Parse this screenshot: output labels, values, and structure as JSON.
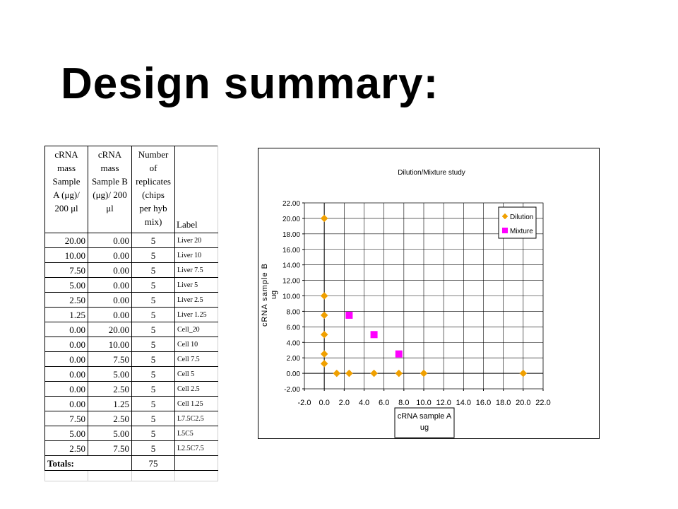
{
  "title": "Design summary:",
  "table": {
    "headers": [
      "cRNA mass Sample A (μg)/ 200 μl",
      "cRNA mass Sample B (μg)/ 200 μl",
      "Number of replicates (chips per hyb mix)",
      "Label"
    ],
    "header_lines": [
      [
        "cRNA",
        "mass",
        "Sample",
        "A (μg)/",
        "200 μl"
      ],
      [
        "cRNA",
        "mass",
        "Sample B",
        "(μg)/ 200",
        "μl"
      ],
      [
        "Number",
        "of",
        "replicates",
        "(chips",
        "per hyb",
        "mix)"
      ]
    ],
    "rows": [
      {
        "a": "20.00",
        "b": "0.00",
        "n": "5",
        "label": "Liver 20"
      },
      {
        "a": "10.00",
        "b": "0.00",
        "n": "5",
        "label": "Liver 10"
      },
      {
        "a": "7.50",
        "b": "0.00",
        "n": "5",
        "label": "Liver 7.5"
      },
      {
        "a": "5.00",
        "b": "0.00",
        "n": "5",
        "label": "Liver 5"
      },
      {
        "a": "2.50",
        "b": "0.00",
        "n": "5",
        "label": "Liver 2.5"
      },
      {
        "a": "1.25",
        "b": "0.00",
        "n": "5",
        "label": "Liver 1.25"
      },
      {
        "a": "0.00",
        "b": "20.00",
        "n": "5",
        "label": "Cell_20"
      },
      {
        "a": "0.00",
        "b": "10.00",
        "n": "5",
        "label": "Cell 10"
      },
      {
        "a": "0.00",
        "b": "7.50",
        "n": "5",
        "label": "Cell 7.5"
      },
      {
        "a": "0.00",
        "b": "5.00",
        "n": "5",
        "label": "Cell 5"
      },
      {
        "a": "0.00",
        "b": "2.50",
        "n": "5",
        "label": "Cell 2.5"
      },
      {
        "a": "0.00",
        "b": "1.25",
        "n": "5",
        "label": "Cell 1.25"
      },
      {
        "a": "7.50",
        "b": "2.50",
        "n": "5",
        "label": "L7.5C2.5"
      },
      {
        "a": "5.00",
        "b": "5.00",
        "n": "5",
        "label": "L5C5"
      },
      {
        "a": "2.50",
        "b": "7.50",
        "n": "5",
        "label": "L2.5C7.5"
      }
    ],
    "totals_label": "Totals:",
    "totals_value": "75"
  },
  "chart_data": {
    "type": "scatter",
    "title": "Dilution/Mixture study",
    "xlabel_lines": [
      "cRNA sample A",
      "ug"
    ],
    "ylabel_lines": [
      "cRNA sample B",
      "ug"
    ],
    "xlim": [
      -2.0,
      22.0
    ],
    "ylim": [
      -2.0,
      22.0
    ],
    "xticks": [
      "-2.0",
      "0.0",
      "2.0",
      "4.0",
      "6.0",
      "8.0",
      "10.0",
      "12.0",
      "14.0",
      "16.0",
      "18.0",
      "20.0",
      "22.0"
    ],
    "yticks": [
      "-2.00",
      "0.00",
      "2.00",
      "4.00",
      "6.00",
      "8.00",
      "10.00",
      "12.00",
      "14.00",
      "16.00",
      "18.00",
      "20.00",
      "22.00"
    ],
    "grid": true,
    "legend_position": "top-right",
    "series": [
      {
        "name": "Dilution",
        "marker": "diamond",
        "color": "#F0A000",
        "points": [
          [
            0,
            20
          ],
          [
            0,
            10
          ],
          [
            0,
            7.5
          ],
          [
            0,
            5
          ],
          [
            0,
            2.5
          ],
          [
            0,
            1.25
          ],
          [
            1.25,
            0
          ],
          [
            2.5,
            0
          ],
          [
            5,
            0
          ],
          [
            7.5,
            0
          ],
          [
            10,
            0
          ],
          [
            20,
            0
          ]
        ]
      },
      {
        "name": "Mixture",
        "marker": "square",
        "color": "#FF00FF",
        "points": [
          [
            2.5,
            7.5
          ],
          [
            5,
            5
          ],
          [
            7.5,
            2.5
          ]
        ]
      }
    ]
  }
}
